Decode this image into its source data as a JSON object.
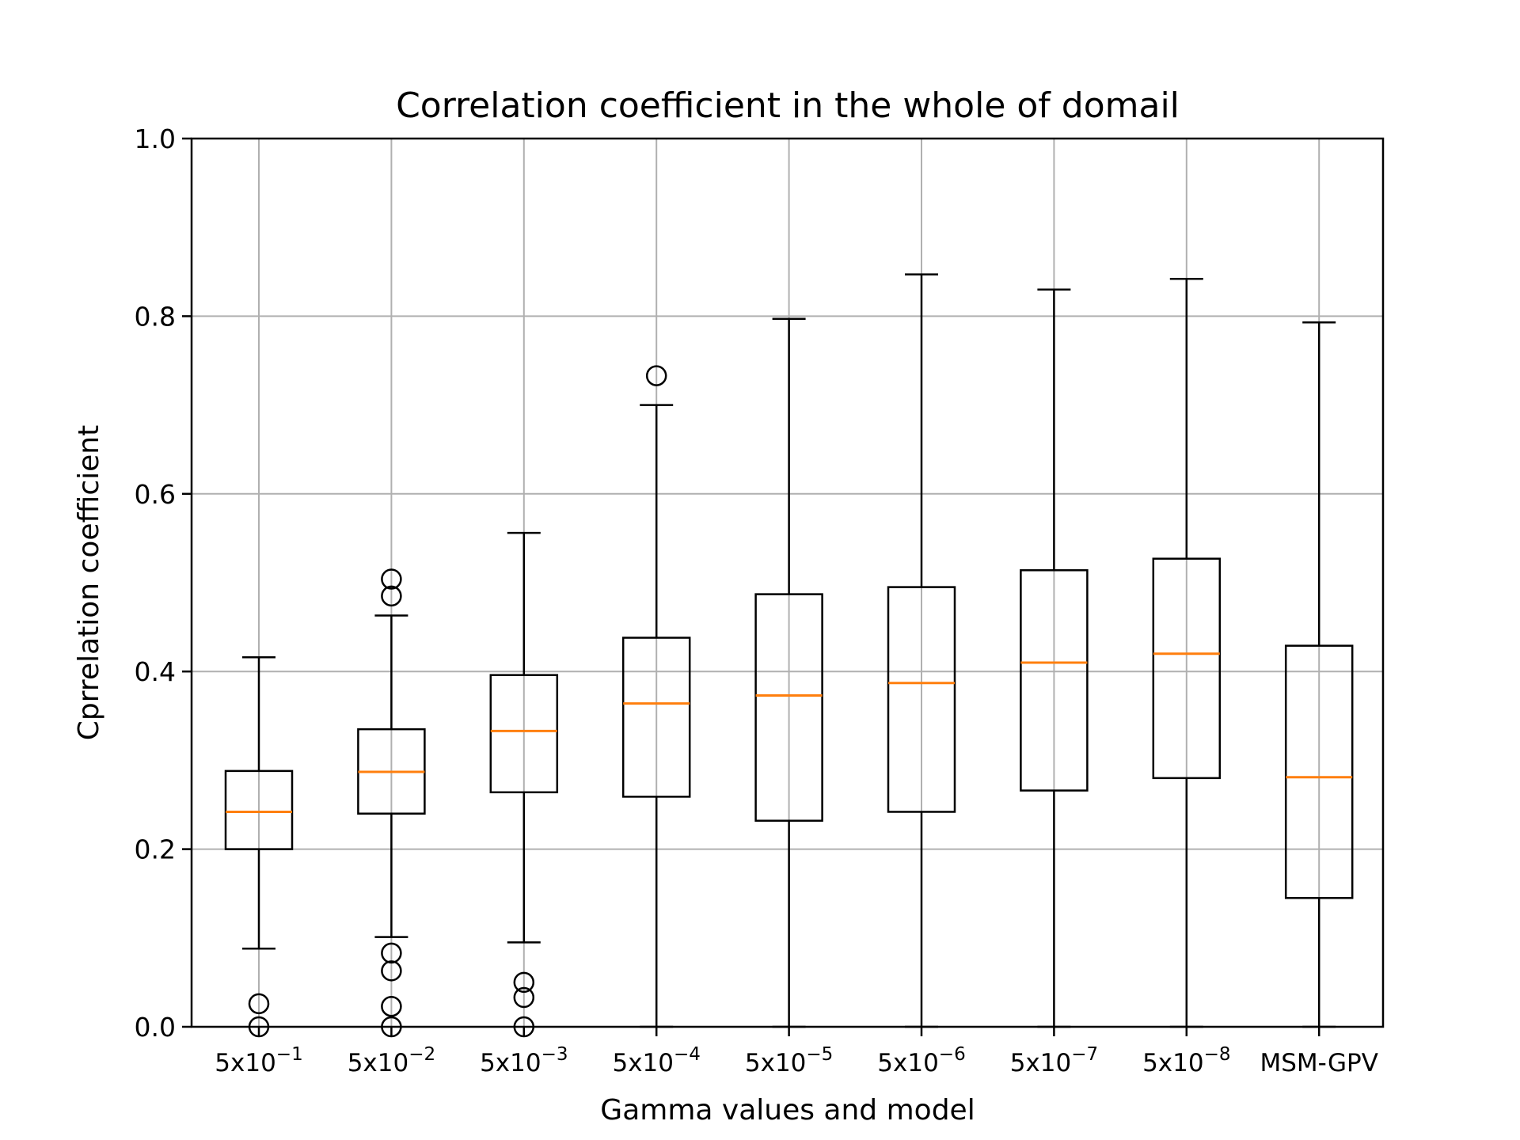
{
  "chart_data": {
    "type": "box",
    "title": "Correlation coefficient in the whole of domail",
    "xlabel": "Gamma values and model",
    "ylabel": "Cprrelation coefficient",
    "ylim": [
      0.0,
      1.0
    ],
    "yticks": [
      "0.0",
      "0.2",
      "0.4",
      "0.6",
      "0.8",
      "1.0"
    ],
    "grid": true,
    "colors": {
      "box": "#000000",
      "median": "#ff7f0e",
      "grid": "#b0b0b0"
    },
    "categories": [
      {
        "base": "5x10",
        "exp": "−1"
      },
      {
        "base": "5x10",
        "exp": "−2"
      },
      {
        "base": "5x10",
        "exp": "−3"
      },
      {
        "base": "5x10",
        "exp": "−4"
      },
      {
        "base": "5x10",
        "exp": "−5"
      },
      {
        "base": "5x10",
        "exp": "−6"
      },
      {
        "base": "5x10",
        "exp": "−7"
      },
      {
        "base": "5x10",
        "exp": "−8"
      },
      {
        "base": "MSM-GPV",
        "exp": ""
      }
    ],
    "boxes": [
      {
        "whisker_low": 0.088,
        "q1": 0.2,
        "median": 0.242,
        "q3": 0.288,
        "whisker_high": 0.416,
        "outliers": [
          0.026,
          0.0
        ]
      },
      {
        "whisker_low": 0.101,
        "q1": 0.24,
        "median": 0.287,
        "q3": 0.335,
        "whisker_high": 0.463,
        "outliers": [
          0.504,
          0.485,
          0.083,
          0.063,
          0.023,
          0.0
        ]
      },
      {
        "whisker_low": 0.095,
        "q1": 0.264,
        "median": 0.333,
        "q3": 0.396,
        "whisker_high": 0.556,
        "outliers": [
          0.05,
          0.033,
          0.0
        ]
      },
      {
        "whisker_low": 0.0,
        "q1": 0.259,
        "median": 0.364,
        "q3": 0.438,
        "whisker_high": 0.7,
        "outliers": [
          0.733
        ]
      },
      {
        "whisker_low": 0.0,
        "q1": 0.232,
        "median": 0.373,
        "q3": 0.487,
        "whisker_high": 0.797,
        "outliers": []
      },
      {
        "whisker_low": 0.0,
        "q1": 0.242,
        "median": 0.387,
        "q3": 0.495,
        "whisker_high": 0.847,
        "outliers": []
      },
      {
        "whisker_low": 0.0,
        "q1": 0.266,
        "median": 0.41,
        "q3": 0.514,
        "whisker_high": 0.83,
        "outliers": []
      },
      {
        "whisker_low": 0.0,
        "q1": 0.28,
        "median": 0.42,
        "q3": 0.527,
        "whisker_high": 0.842,
        "outliers": []
      },
      {
        "whisker_low": 0.0,
        "q1": 0.145,
        "median": 0.281,
        "q3": 0.429,
        "whisker_high": 0.793,
        "outliers": []
      }
    ]
  }
}
